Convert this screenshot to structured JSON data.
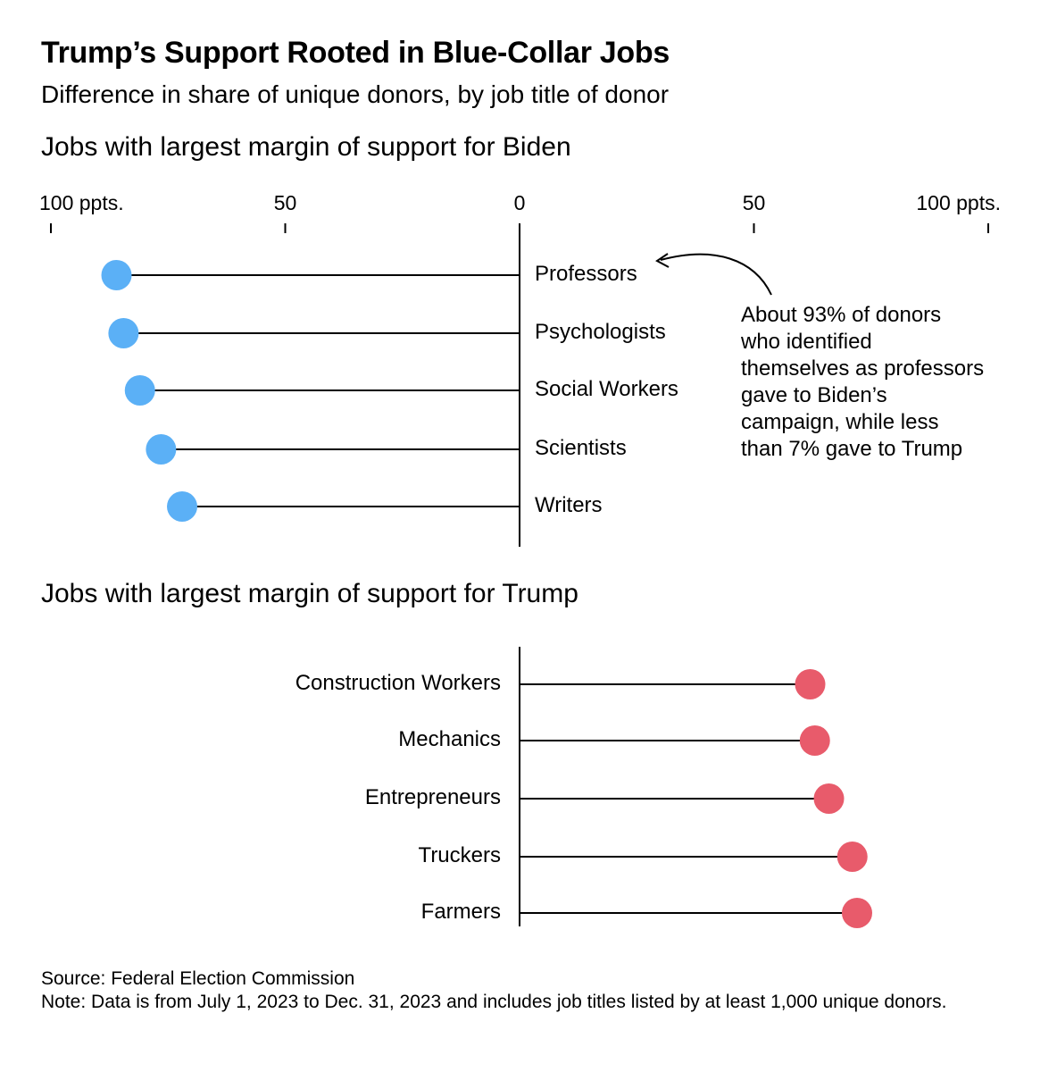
{
  "title": "Trump’s Support Rooted in Blue-Collar Jobs",
  "subtitle": "Difference in share of unique donors, by job title of donor",
  "source": "Source: Federal Election Commission",
  "note": "Note: Data is from July 1, 2023 to Dec. 31, 2023 and includes job titles listed by at least 1,000 unique donors.",
  "colors": {
    "biden": "#5bb0f6",
    "trump": "#e85b6b",
    "line": "#000000"
  },
  "chart_data": [
    {
      "type": "lollipop",
      "title": "Jobs with largest margin of support for Biden",
      "direction": "left",
      "xlim": [
        -100,
        100
      ],
      "ticks": [
        {
          "value": -100,
          "label": "100 ppts."
        },
        {
          "value": -50,
          "label": "50"
        },
        {
          "value": 0,
          "label": "0"
        },
        {
          "value": 50,
          "label": "50"
        },
        {
          "value": 100,
          "label": "100 ppts."
        }
      ],
      "categories": [
        "Professors",
        "Psychologists",
        "Social Workers",
        "Scientists",
        "Writers"
      ],
      "values": [
        86,
        84.5,
        81,
        76.5,
        72
      ],
      "annotation": {
        "target": "Professors",
        "lines": [
          "About 93% of donors",
          "who identified",
          "themselves as professors",
          "gave to Biden’s",
          "campaign, while less",
          "than 7% gave to Trump"
        ]
      }
    },
    {
      "type": "lollipop",
      "title": "Jobs with largest margin of support for Trump",
      "direction": "right",
      "xlim": [
        -100,
        100
      ],
      "categories": [
        "Construction Workers",
        "Mechanics",
        "Entrepreneurs",
        "Truckers",
        "Farmers"
      ],
      "values": [
        62,
        63,
        66,
        71,
        72
      ]
    }
  ]
}
